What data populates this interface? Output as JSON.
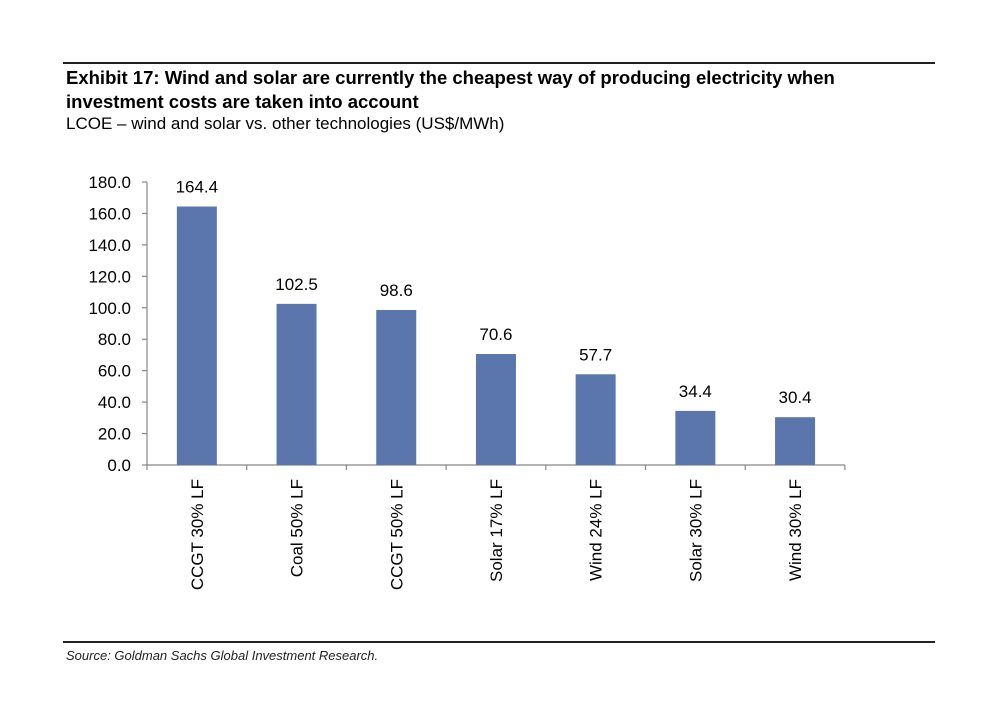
{
  "title": "Exhibit 17: Wind and solar are currently the cheapest way of producing electricity when investment costs are taken into account",
  "subtitle": "LCOE – wind and solar vs. other technologies (US$/MWh)",
  "source": "Source: Goldman Sachs Global Investment Research.",
  "chart_data": {
    "type": "bar",
    "categories": [
      "CCGT 30% LF",
      "Coal 50% LF",
      "CCGT 50% LF",
      "Solar 17% LF",
      "Wind 24% LF",
      "Solar 30% LF",
      "Wind 30% LF"
    ],
    "values": [
      164.4,
      102.5,
      98.6,
      70.6,
      57.7,
      34.4,
      30.4
    ],
    "value_labels": [
      "164.4",
      "102.5",
      "98.6",
      "70.6",
      "57.7",
      "34.4",
      "30.4"
    ],
    "ylim": [
      0,
      180
    ],
    "yticks": [
      "0.0",
      "20.0",
      "40.0",
      "60.0",
      "80.0",
      "100.0",
      "120.0",
      "140.0",
      "160.0",
      "180.0"
    ],
    "grid": false,
    "bar_color": "#5b76ad"
  }
}
